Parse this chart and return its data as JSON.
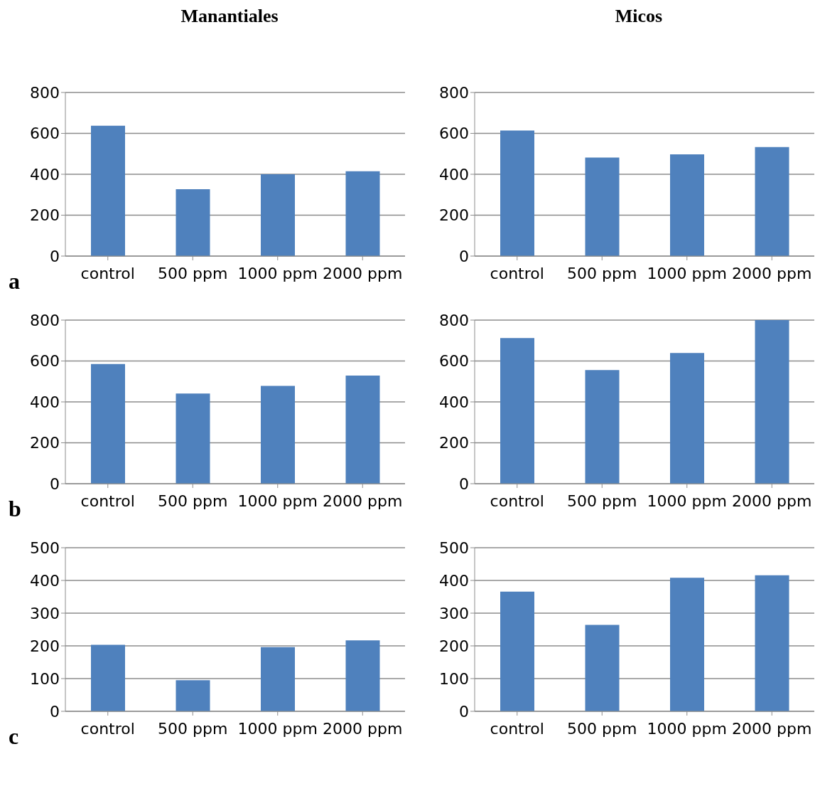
{
  "chart_data": [
    {
      "type": "bar",
      "title": "Manantiales",
      "categories": [
        "control",
        "500 ppm",
        "1000 ppm",
        "2000 ppm"
      ],
      "values": [
        637,
        327,
        400,
        415
      ],
      "color": "#4f81bd",
      "ylim": [
        0,
        800
      ],
      "yticks": [
        0,
        200,
        400,
        600,
        800
      ],
      "grid": "y",
      "annotations": [
        "a"
      ]
    },
    {
      "type": "bar",
      "title": "Micos",
      "categories": [
        "control",
        "500 ppm",
        "1000 ppm",
        "2000 ppm"
      ],
      "values": [
        614,
        482,
        497,
        533
      ],
      "color": "#4f81bd",
      "ylim": [
        0,
        800
      ],
      "yticks": [
        0,
        200,
        400,
        600,
        800
      ],
      "grid": "y"
    },
    {
      "type": "bar",
      "categories": [
        "control",
        "500 ppm",
        "1000 ppm",
        "2000 ppm"
      ],
      "values": [
        585,
        441,
        478,
        529
      ],
      "color": "#4f81bd",
      "ylim": [
        0,
        800
      ],
      "yticks": [
        0,
        200,
        400,
        600,
        800
      ],
      "grid": "y",
      "annotations": [
        "b"
      ]
    },
    {
      "type": "bar",
      "categories": [
        "control",
        "500 ppm",
        "1000 ppm",
        "2000 ppm"
      ],
      "values": [
        712,
        556,
        639,
        800
      ],
      "color": "#4f81bd",
      "ylim": [
        0,
        800
      ],
      "yticks": [
        0,
        200,
        400,
        600,
        800
      ],
      "grid": "y"
    },
    {
      "type": "bar",
      "categories": [
        "control",
        "500 ppm",
        "1000 ppm",
        "2000 ppm"
      ],
      "values": [
        203,
        95,
        196,
        217
      ],
      "color": "#4f81bd",
      "ylim": [
        0,
        500
      ],
      "yticks": [
        0,
        100,
        200,
        300,
        400,
        500
      ],
      "grid": "y",
      "annotations": [
        "c"
      ]
    },
    {
      "type": "bar",
      "categories": [
        "control",
        "500 ppm",
        "1000 ppm",
        "2000 ppm"
      ],
      "values": [
        366,
        264,
        408,
        416
      ],
      "color": "#4f81bd",
      "ylim": [
        0,
        500
      ],
      "yticks": [
        0,
        100,
        200,
        300,
        400,
        500
      ],
      "grid": "y"
    }
  ]
}
